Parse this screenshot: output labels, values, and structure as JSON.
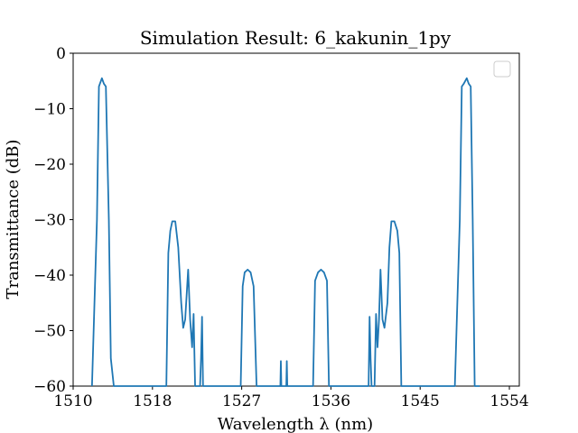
{
  "chart_data": {
    "type": "line",
    "title": "Simulation Result: 6_kakunin_1py",
    "xlabel": "Wavelength λ (nm)",
    "ylabel": "Transmittance (dB)",
    "xlim": [
      1510,
      1555
    ],
    "ylim": [
      -60,
      0
    ],
    "xticks": [
      1510,
      1518,
      1527,
      1536,
      1545,
      1554
    ],
    "xtick_labels": [
      "1510",
      "1518",
      "1527",
      "1536",
      "1545",
      "1554"
    ],
    "yticks": [
      0,
      -10,
      -20,
      -30,
      -40,
      -50,
      -60
    ],
    "ytick_labels": [
      "0",
      "−10",
      "−20",
      "−30",
      "−40",
      "−50",
      "−60"
    ],
    "grid": false,
    "legend": {
      "location": "upper-right",
      "entries": []
    },
    "series": [
      {
        "name": "transmittance",
        "color": "#1f77b4",
        "x": [
          1511.9,
          1512.4,
          1512.6,
          1512.7,
          1512.9,
          1513.1,
          1513.3,
          1513.6,
          1513.8,
          1514.1,
          1514.6,
          1519.4,
          1519.6,
          1519.8,
          1520.0,
          1520.3,
          1520.6,
          1520.9,
          1521.1,
          1521.3,
          1521.6,
          1521.8,
          1522.0,
          1522.15,
          1522.3,
          1522.45,
          1522.6,
          1522.8,
          1522.9,
          1523.0,
          1523.1,
          1526.9,
          1527.1,
          1527.3,
          1527.6,
          1527.9,
          1528.2,
          1528.5,
          1528.7,
          1530.9,
          1530.95,
          1531.0,
          1531.5,
          1531.55,
          1531.6,
          1534.2,
          1534.4,
          1534.7,
          1535.0,
          1535.3,
          1535.6,
          1535.8,
          1536.0,
          1539.8,
          1539.9,
          1540.0,
          1540.1,
          1540.2,
          1540.4,
          1540.55,
          1540.7,
          1540.85,
          1541.0,
          1541.2,
          1541.4,
          1541.7,
          1541.9,
          1542.1,
          1542.4,
          1542.7,
          1542.9,
          1543.1,
          1543.3,
          1543.6,
          1548.5,
          1549.0,
          1549.2,
          1549.4,
          1549.7,
          1549.9,
          1550.1,
          1550.3,
          1550.5,
          1551.0
        ],
        "y": [
          -60,
          -30,
          -6,
          -5.5,
          -4.5,
          -5.5,
          -6,
          -30,
          -55,
          -60,
          -60,
          -60,
          -36,
          -32,
          -30.3,
          -30.3,
          -35,
          -45,
          -49.5,
          -48,
          -39,
          -48,
          -53,
          -47,
          -60,
          -60,
          -60,
          -60,
          -55,
          -47.5,
          -60,
          -60,
          -42,
          -39.5,
          -39,
          -39.5,
          -42,
          -60,
          -60,
          -60,
          -55.5,
          -60,
          -60,
          -55.5,
          -60,
          -60,
          -41,
          -39.5,
          -39,
          -39.5,
          -41,
          -60,
          -60,
          -60,
          -47.5,
          -55,
          -60,
          -60,
          -60,
          -47,
          -53,
          -48,
          -39,
          -48,
          -49.5,
          -45,
          -35,
          -30.3,
          -30.3,
          -32,
          -36,
          -60,
          -60,
          -60,
          -60,
          -30,
          -6,
          -5.5,
          -4.5,
          -5.5,
          -6,
          -30,
          -60,
          -60
        ]
      }
    ]
  }
}
